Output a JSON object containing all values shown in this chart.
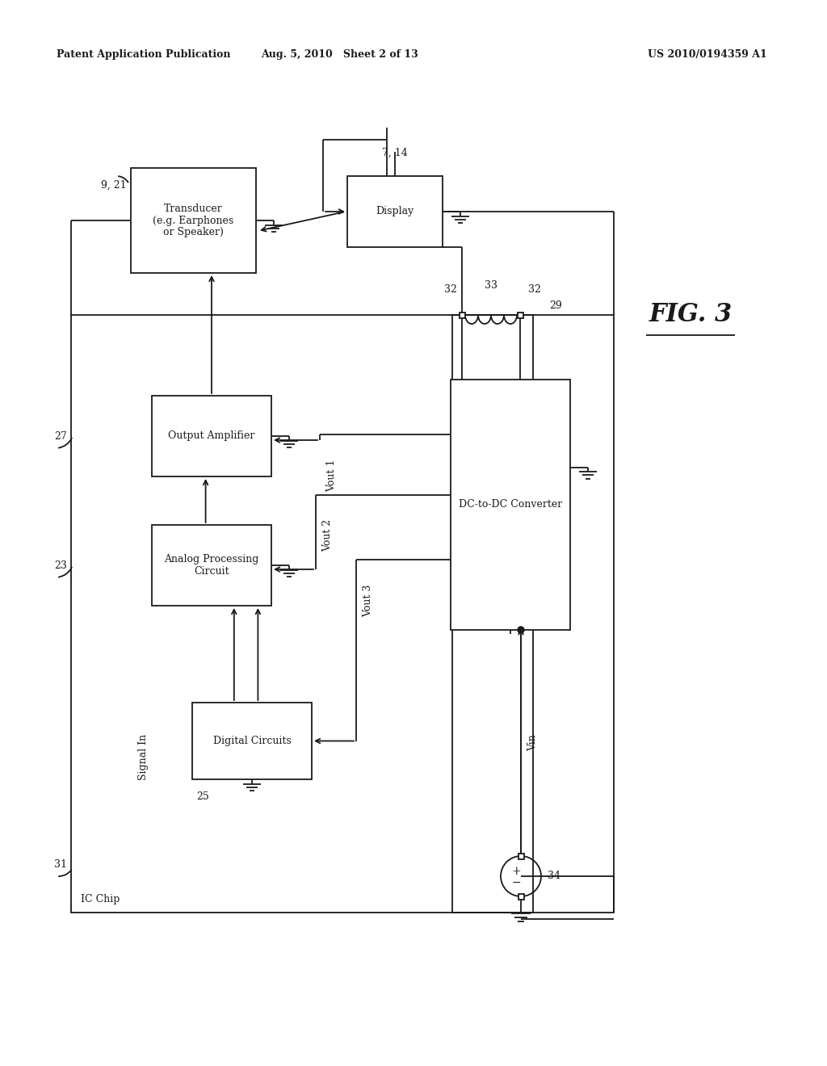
{
  "title_left": "Patent Application Publication",
  "title_center": "Aug. 5, 2010   Sheet 2 of 13",
  "title_right": "US 2010/0194359 A1",
  "fig_label": "FIG. 3",
  "background_color": "#ffffff",
  "line_color": "#1a1a1a"
}
